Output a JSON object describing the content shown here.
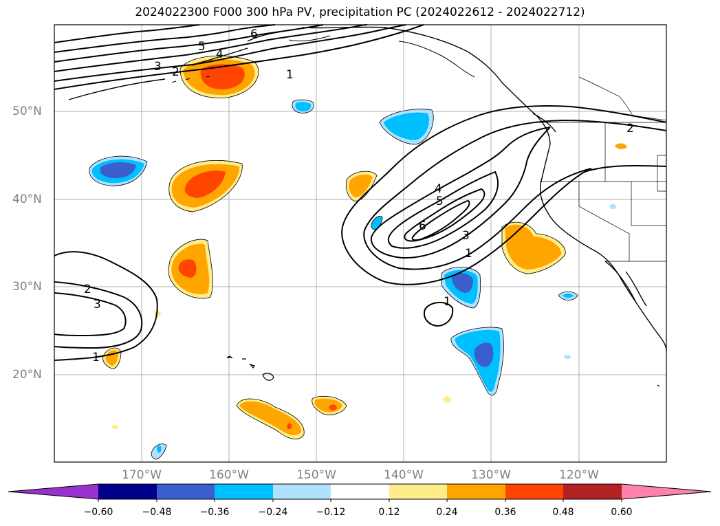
{
  "title": "2024022300 F000 300 hPa PV, precipitation PC (2024022612 - 2024022712)",
  "axes": {
    "lat_ticks": [
      "50°N",
      "40°N",
      "30°N",
      "20°N"
    ],
    "lon_ticks": [
      "170°W",
      "160°W",
      "150°W",
      "140°W",
      "130°W",
      "120°W"
    ]
  },
  "colorbar": {
    "tick_labels": [
      "−0.60",
      "−0.48",
      "−0.36",
      "−0.24",
      "−0.12",
      "0.12",
      "0.24",
      "0.36",
      "0.48",
      "0.60"
    ],
    "colors": [
      "#9932cc",
      "#00008b",
      "#3a5fcd",
      "#00bfff",
      "#b0e2ff",
      "#ffffff",
      "#ffec8b",
      "#ffa500",
      "#ff4500",
      "#b22222",
      "#ff82ab"
    ]
  },
  "contour_labels": [
    "6",
    "5",
    "4",
    "3",
    "2",
    "1",
    "2",
    "3",
    "1",
    "4",
    "5",
    "6",
    "3",
    "1",
    "1",
    "2"
  ],
  "colors": {
    "grid": "#b0b0b0",
    "coast": "#000000",
    "contour": "#000000"
  }
}
